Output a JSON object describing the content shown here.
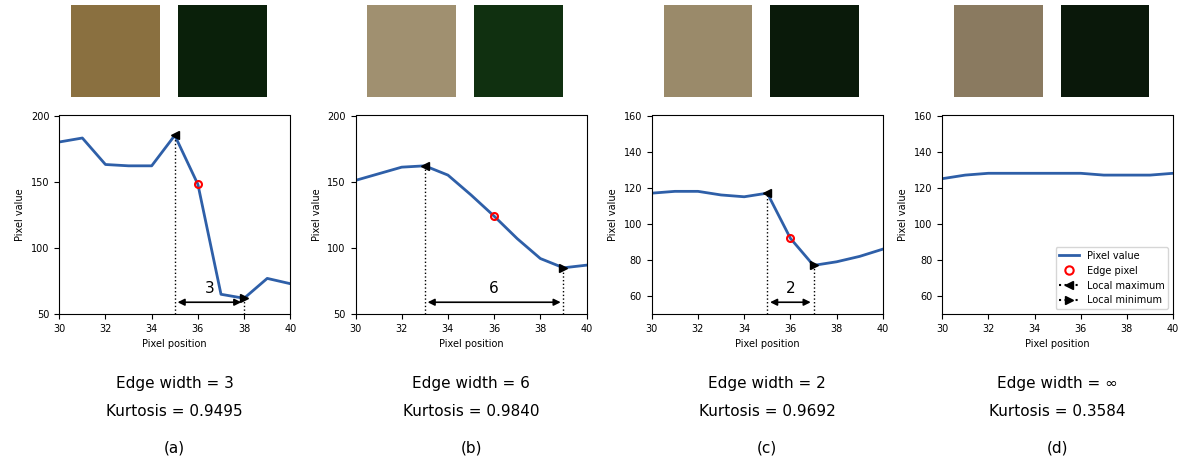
{
  "chart_data": [
    {
      "type": "line",
      "panel_label": "(a)",
      "caption": [
        "Edge width = 3",
        "Kurtosis = 0.9495"
      ],
      "x_label": "Pixel position",
      "y_label": "Pixel value",
      "x": [
        30,
        31,
        32,
        33,
        34,
        35,
        36,
        37,
        38,
        39,
        40
      ],
      "series": [
        {
          "color": "#2e5fa8",
          "values": [
            180,
            183,
            163,
            162,
            162,
            185,
            148,
            65,
            62,
            77,
            73
          ]
        }
      ],
      "edge_pixel": {
        "x": 36,
        "y": 148
      },
      "local_maximum": {
        "x": 35,
        "y": 185
      },
      "local_minimum": {
        "x": 38,
        "y": 62
      },
      "width_label": "3",
      "xlim": [
        30,
        40
      ],
      "xticks": [
        30,
        32,
        34,
        36,
        38,
        40
      ],
      "ylim": [
        50,
        200
      ],
      "yticks": [
        50,
        100,
        150,
        200
      ]
    },
    {
      "type": "line",
      "panel_label": "(b)",
      "caption": [
        "Edge width = 6",
        "Kurtosis = 0.9840"
      ],
      "x_label": "Pixel position",
      "y_label": "Pixel value",
      "x": [
        30,
        31,
        32,
        33,
        34,
        35,
        36,
        37,
        38,
        39,
        40
      ],
      "series": [
        {
          "color": "#2e5fa8",
          "values": [
            151,
            156,
            161,
            162,
            155,
            140,
            124,
            107,
            92,
            85,
            87
          ]
        }
      ],
      "edge_pixel": {
        "x": 36,
        "y": 124
      },
      "local_maximum": {
        "x": 33,
        "y": 162
      },
      "local_minimum": {
        "x": 39,
        "y": 85
      },
      "width_label": "6",
      "xlim": [
        30,
        40
      ],
      "xticks": [
        30,
        32,
        34,
        36,
        38,
        40
      ],
      "ylim": [
        50,
        200
      ],
      "yticks": [
        50,
        100,
        150,
        200
      ]
    },
    {
      "type": "line",
      "panel_label": "(c)",
      "caption": [
        "Edge width = 2",
        "Kurtosis = 0.9692"
      ],
      "x_label": "Pixel position",
      "y_label": "Pixel value",
      "x": [
        30,
        31,
        32,
        33,
        34,
        35,
        36,
        37,
        38,
        39,
        40
      ],
      "series": [
        {
          "color": "#2e5fa8",
          "values": [
            117,
            118,
            118,
            116,
            115,
            117,
            92,
            77,
            79,
            82,
            86
          ]
        }
      ],
      "edge_pixel": {
        "x": 36,
        "y": 92
      },
      "local_maximum": {
        "x": 35,
        "y": 117
      },
      "local_minimum": {
        "x": 37,
        "y": 77
      },
      "width_label": "2",
      "xlim": [
        30,
        40
      ],
      "xticks": [
        30,
        32,
        34,
        36,
        38,
        40
      ],
      "ylim": [
        50,
        160
      ],
      "yticks": [
        60,
        80,
        100,
        120,
        140,
        160
      ]
    },
    {
      "type": "line",
      "panel_label": "(d)",
      "caption": [
        "Edge width = ∞",
        "Kurtosis = 0.3584"
      ],
      "x_label": "Pixel position",
      "y_label": "Pixel value",
      "x": [
        30,
        31,
        32,
        33,
        34,
        35,
        36,
        37,
        38,
        39,
        40
      ],
      "series": [
        {
          "name": "Pixel value",
          "color": "#2e5fa8",
          "values": [
            125,
            127,
            128,
            128,
            128,
            128,
            128,
            127,
            127,
            127,
            128
          ]
        }
      ],
      "marker_names": {
        "edge_pixel": "Edge pixel",
        "local_maximum": "Local maximum",
        "local_minimum": "Local minimum"
      },
      "legend": "lower right",
      "xlim": [
        30,
        40
      ],
      "xticks": [
        30,
        32,
        34,
        36,
        38,
        40
      ],
      "ylim": [
        50,
        160
      ],
      "yticks": [
        60,
        80,
        100,
        120,
        140,
        160
      ]
    }
  ]
}
